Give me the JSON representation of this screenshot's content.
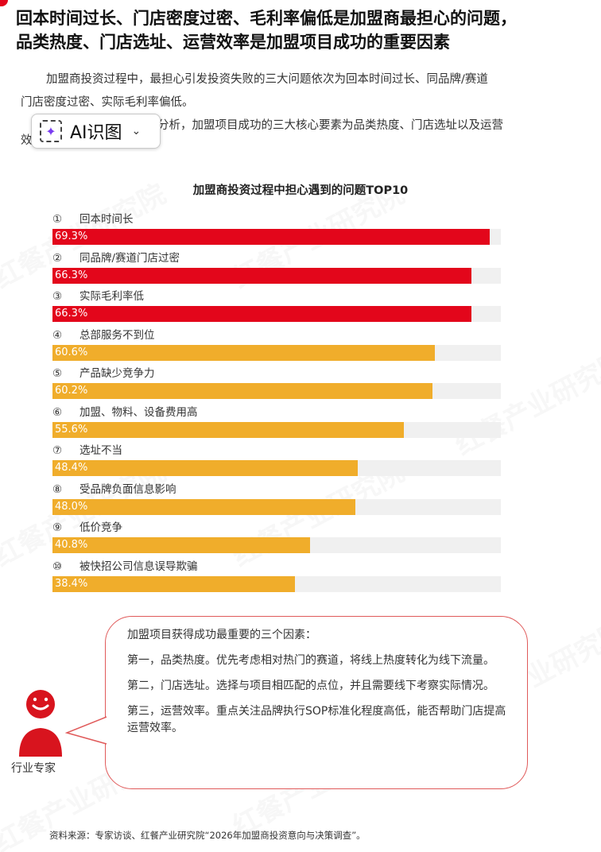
{
  "headline": {
    "line1": "回本时间过长、门店密度过密、毛利率偏低是加盟商最担心的问题，",
    "line2": "品类热度、门店选址、运营效率是加盟项目成功的重要因素"
  },
  "intro": {
    "line1": "加盟商投资过程中，最担心引发投资失败的三大问题依次为回本时间过长、同品牌/赛道",
    "line2": "门店密度过密、实际毛利率偏低。",
    "line3_tail": "分析，加盟项目成功的三大核心要素为品类热度、门店选址以及运营",
    "line4": "效率。"
  },
  "ai_button": {
    "label": "AI识图",
    "spark_icon": "sparkle-icon",
    "chevron_icon": "chevron-down-icon"
  },
  "watermark_text": "红餐产业研究院",
  "chart_data": {
    "type": "bar",
    "orientation": "horizontal",
    "title": "加盟商投资过程中担心遇到的问题TOP10",
    "categories": [
      "回本时间长",
      "同品牌/赛道门店过密",
      "实际毛利率低",
      "总部服务不到位",
      "产品缺少竞争力",
      "加盟、物料、设备费用高",
      "选址不当",
      "受品牌负面信息影响",
      "低价竞争",
      "被快招公司信息误导欺骗"
    ],
    "ranks": [
      "①",
      "②",
      "③",
      "④",
      "⑤",
      "⑥",
      "⑦",
      "⑧",
      "⑨",
      "⑩"
    ],
    "values": [
      69.3,
      66.3,
      66.3,
      60.6,
      60.2,
      55.6,
      48.4,
      48.0,
      40.8,
      38.4
    ],
    "value_labels": [
      "69.3%",
      "66.3%",
      "66.3%",
      "60.6%",
      "60.2%",
      "55.6%",
      "48.4%",
      "48.0%",
      "40.8%",
      "38.4%"
    ],
    "xlim": [
      0,
      70
    ],
    "colors": {
      "top3": "#e3061b",
      "rest": "#f0ad2b",
      "track": "#f0f0f0"
    },
    "highlight_count": 3
  },
  "expert": {
    "label": "行业专家",
    "icon": "expert-avatar-icon",
    "heading": "加盟项目获得成功最重要的三个因素：",
    "points": [
      "第一，品类热度。优先考虑相对热门的赛道，将线上热度转化为线下流量。",
      "第二，门店选址。选择与项目相匹配的点位，并且需要线下考察实际情况。",
      "第三，运营效率。重点关注品牌执行SOP标准化程度高低，能否帮助门店提高运营效率。"
    ]
  },
  "source": "资料来源：专家访谈、红餐产业研究院“2026年加盟商投资意向与决策调查”。"
}
